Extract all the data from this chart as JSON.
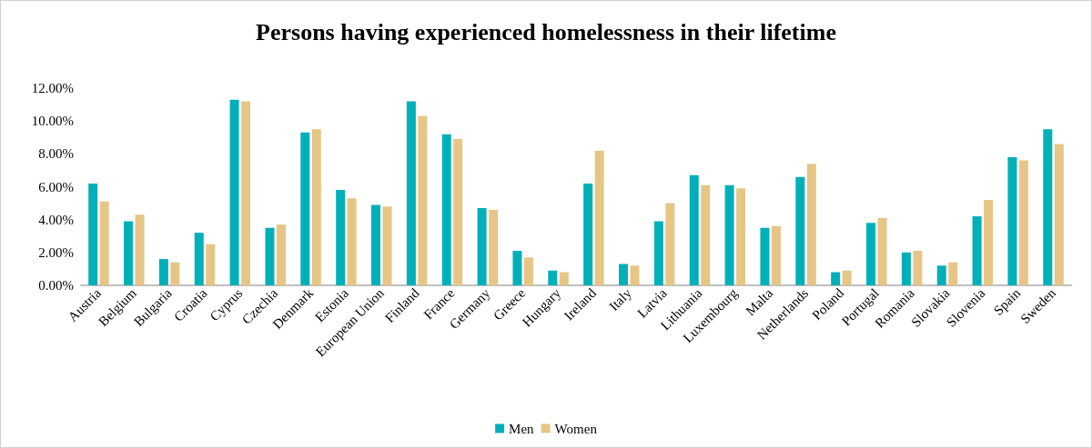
{
  "chart_data": {
    "type": "bar",
    "title": "Persons having experienced homelessness in their lifetime",
    "categories": [
      "Austria",
      "Belgium",
      "Bulgaria",
      "Croatia",
      "Cyprus",
      "Czechia",
      "Denmark",
      "Estonia",
      "European Union",
      "Finland",
      "France",
      "Germany",
      "Greece",
      "Hungary",
      "Ireland",
      "Italy",
      "Latvia",
      "Lithuania",
      "Luxembourg",
      "Malta",
      "Netherlands",
      "Poland",
      "Portugal",
      "Romania",
      "Slovakia",
      "Slovenia",
      "Spain",
      "Sweden"
    ],
    "series": [
      {
        "name": "Men",
        "color": "#00b0b8",
        "values": [
          6.2,
          3.9,
          1.6,
          3.2,
          11.3,
          3.5,
          9.3,
          5.8,
          4.9,
          11.2,
          9.2,
          4.7,
          2.1,
          0.9,
          6.2,
          1.3,
          3.9,
          6.7,
          6.1,
          3.5,
          6.6,
          0.8,
          3.8,
          2.0,
          1.2,
          4.2,
          7.8,
          9.5
        ]
      },
      {
        "name": "Women",
        "color": "#e6c686",
        "values": [
          5.1,
          4.3,
          1.4,
          2.5,
          11.2,
          3.7,
          9.5,
          5.3,
          4.8,
          10.3,
          8.9,
          4.6,
          1.7,
          0.8,
          8.2,
          1.2,
          5.0,
          6.1,
          5.9,
          3.6,
          7.4,
          0.9,
          4.1,
          2.1,
          1.4,
          5.2,
          7.6,
          8.6
        ]
      }
    ],
    "ylim": [
      0,
      12
    ],
    "yticks": [
      {
        "value": 0,
        "label": "0.00%"
      },
      {
        "value": 2,
        "label": "2.00%"
      },
      {
        "value": 4,
        "label": "4.00%"
      },
      {
        "value": 6,
        "label": "6.00%"
      },
      {
        "value": 8,
        "label": "8.00%"
      },
      {
        "value": 10,
        "label": "10.00%"
      },
      {
        "value": 12,
        "label": "12.00%"
      }
    ],
    "grid": false,
    "legend": "bottom"
  }
}
